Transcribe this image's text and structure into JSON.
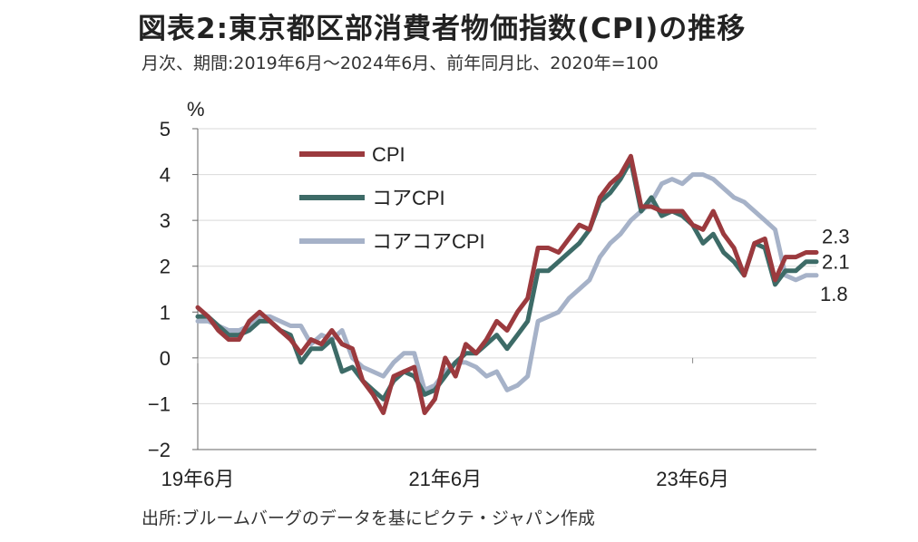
{
  "header": {
    "title": "図表2:東京都区部消費者物価指数(CPI)の推移",
    "subtitle": "月次、期間:2019年6月～2024年6月、前年同月比、2020年=100"
  },
  "footer": {
    "source": "出所:ブルームバーグのデータを基にピクテ・ジャパン作成"
  },
  "chart_data": {
    "type": "line",
    "ylabel": "%",
    "ylim": [
      -2,
      5
    ],
    "yticks": [
      5,
      4,
      3,
      2,
      1,
      0,
      -1,
      -2
    ],
    "xtick_labels": [
      {
        "label": "19年6月",
        "index": 0
      },
      {
        "label": "21年6月",
        "index": 24
      },
      {
        "label": "23年6月",
        "index": 48
      }
    ],
    "grid": "horizontal",
    "legend_position": "top-left",
    "x": [
      "2019-06",
      "2019-07",
      "2019-08",
      "2019-09",
      "2019-10",
      "2019-11",
      "2019-12",
      "2020-01",
      "2020-02",
      "2020-03",
      "2020-04",
      "2020-05",
      "2020-06",
      "2020-07",
      "2020-08",
      "2020-09",
      "2020-10",
      "2020-11",
      "2020-12",
      "2021-01",
      "2021-02",
      "2021-03",
      "2021-04",
      "2021-05",
      "2021-06",
      "2021-07",
      "2021-08",
      "2021-09",
      "2021-10",
      "2021-11",
      "2021-12",
      "2022-01",
      "2022-02",
      "2022-03",
      "2022-04",
      "2022-05",
      "2022-06",
      "2022-07",
      "2022-08",
      "2022-09",
      "2022-10",
      "2022-11",
      "2022-12",
      "2023-01",
      "2023-02",
      "2023-03",
      "2023-04",
      "2023-05",
      "2023-06",
      "2023-07",
      "2023-08",
      "2023-09",
      "2023-10",
      "2023-11",
      "2023-12",
      "2024-01",
      "2024-02",
      "2024-03",
      "2024-04",
      "2024-05",
      "2024-06"
    ],
    "series": [
      {
        "name": "CPI",
        "color": "#9b3a3e",
        "values": [
          1.1,
          0.9,
          0.6,
          0.4,
          0.4,
          0.8,
          1.0,
          0.8,
          0.6,
          0.4,
          0.1,
          0.4,
          0.3,
          0.6,
          0.3,
          0.2,
          -0.5,
          -0.8,
          -1.2,
          -0.4,
          -0.3,
          -0.2,
          -1.2,
          -0.9,
          0.0,
          -0.4,
          0.3,
          0.1,
          0.4,
          0.8,
          0.6,
          1.0,
          1.3,
          2.4,
          2.4,
          2.3,
          2.6,
          2.9,
          2.8,
          3.5,
          3.8,
          4.0,
          4.4,
          3.3,
          3.3,
          3.2,
          3.2,
          3.2,
          2.9,
          2.8,
          3.2,
          2.7,
          2.4,
          1.8,
          2.5,
          2.6,
          1.7,
          2.2,
          2.2,
          2.3,
          2.3
        ],
        "end_label": "2.3"
      },
      {
        "name": "コアCPI",
        "color": "#3d6b67",
        "values": [
          0.9,
          0.9,
          0.7,
          0.5,
          0.5,
          0.6,
          0.8,
          0.8,
          0.6,
          0.5,
          -0.1,
          0.2,
          0.2,
          0.4,
          -0.3,
          -0.2,
          -0.5,
          -0.7,
          -0.9,
          -0.5,
          -0.3,
          -0.4,
          -0.8,
          -0.7,
          -0.4,
          -0.1,
          0.1,
          0.1,
          0.3,
          0.5,
          0.2,
          0.5,
          0.8,
          1.9,
          1.9,
          2.1,
          2.3,
          2.5,
          2.8,
          3.4,
          3.6,
          3.9,
          4.3,
          3.2,
          3.5,
          3.1,
          3.2,
          3.1,
          2.9,
          2.5,
          2.7,
          2.3,
          2.1,
          1.8,
          2.5,
          2.4,
          1.6,
          1.9,
          1.9,
          2.1,
          2.1
        ],
        "end_label": "2.1"
      },
      {
        "name": "コアコアCPI",
        "color": "#a6b2c8",
        "values": [
          0.8,
          0.8,
          0.7,
          0.6,
          0.6,
          0.7,
          0.9,
          0.9,
          0.8,
          0.7,
          0.7,
          0.3,
          0.5,
          0.4,
          0.6,
          0.0,
          -0.2,
          -0.3,
          -0.4,
          -0.1,
          0.1,
          0.1,
          -0.7,
          -0.6,
          -0.3,
          -0.1,
          -0.1,
          -0.2,
          -0.4,
          -0.3,
          -0.7,
          -0.6,
          -0.4,
          0.8,
          0.9,
          1.0,
          1.3,
          1.5,
          1.7,
          2.2,
          2.5,
          2.7,
          3.0,
          3.2,
          3.4,
          3.8,
          3.9,
          3.8,
          4.0,
          4.0,
          3.9,
          3.7,
          3.5,
          3.4,
          3.2,
          3.0,
          2.8,
          1.8,
          1.7,
          1.8,
          1.8
        ],
        "end_label": "1.8"
      }
    ]
  }
}
